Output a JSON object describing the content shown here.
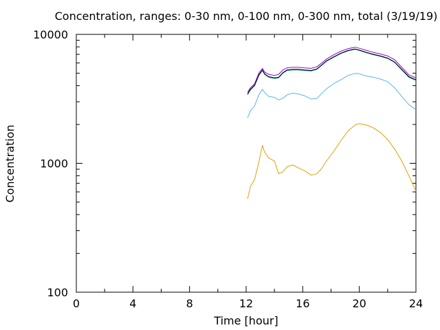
{
  "chart_data": {
    "type": "line",
    "title": "Concentration, ranges: 0-30 nm, 0-100 nm, 0-300 nm, total (3/19/19)",
    "xlabel": "Time [hour]",
    "ylabel": "Concentration",
    "xlim": [
      0,
      24
    ],
    "ylim": [
      100,
      10000
    ],
    "yscale": "log",
    "x_ticks": [
      "0",
      "4",
      "8",
      "12",
      "16",
      "20",
      "24"
    ],
    "y_ticks": [
      "100",
      "1000",
      "10000"
    ],
    "legend": "none",
    "grid": false,
    "series": [
      {
        "color": "#e0a000",
        "x": [
          12.1,
          12.3,
          12.6,
          12.9,
          13.15,
          13.3,
          13.6,
          14.0,
          14.3,
          14.6,
          14.9,
          15.3,
          15.7,
          16.1,
          16.6,
          17.0,
          17.3,
          17.7,
          18.2,
          18.7,
          19.2,
          19.7,
          20.0,
          20.5,
          21.0,
          21.5,
          22.0,
          22.5,
          23.0,
          23.5,
          24.0
        ],
        "values": [
          530,
          660,
          750,
          1020,
          1380,
          1220,
          1100,
          1040,
          830,
          860,
          940,
          970,
          920,
          880,
          810,
          830,
          900,
          1050,
          1240,
          1500,
          1780,
          1980,
          2030,
          1980,
          1880,
          1730,
          1530,
          1290,
          1040,
          800,
          610
        ]
      },
      {
        "color": "#56b4e9",
        "x": [
          12.1,
          12.3,
          12.6,
          12.9,
          13.15,
          13.3,
          13.6,
          14.0,
          14.3,
          14.6,
          14.9,
          15.3,
          15.7,
          16.1,
          16.6,
          17.0,
          17.3,
          17.7,
          18.2,
          18.7,
          19.2,
          19.7,
          20.0,
          20.5,
          21.0,
          21.5,
          22.0,
          22.5,
          23.0,
          23.5,
          24.0
        ],
        "values": [
          2250,
          2550,
          2800,
          3400,
          3750,
          3550,
          3300,
          3250,
          3100,
          3200,
          3400,
          3500,
          3450,
          3350,
          3150,
          3180,
          3450,
          3800,
          4150,
          4450,
          4800,
          4980,
          4950,
          4750,
          4650,
          4500,
          4300,
          3850,
          3300,
          2850,
          2600
        ]
      },
      {
        "color": "#009e73",
        "x": [
          12.1,
          12.3,
          12.6,
          12.9,
          13.15,
          13.3,
          13.6,
          14.0,
          14.3,
          14.6,
          14.9,
          15.3,
          15.7,
          16.1,
          16.6,
          17.0,
          17.3,
          17.7,
          18.2,
          18.7,
          19.2,
          19.7,
          20.0,
          20.5,
          21.0,
          21.5,
          22.0,
          22.5,
          23.0,
          23.5,
          24.0
        ],
        "values": [
          3400,
          3700,
          4000,
          4800,
          5250,
          4900,
          4650,
          4550,
          4600,
          5000,
          5250,
          5300,
          5300,
          5250,
          5200,
          5350,
          5700,
          6200,
          6650,
          7100,
          7450,
          7650,
          7500,
          7200,
          6950,
          6750,
          6500,
          6050,
          5300,
          4650,
          4400
        ]
      },
      {
        "color": "#000000",
        "x": [
          12.1,
          12.3,
          12.6,
          12.9,
          13.15,
          13.3,
          13.6,
          14.0,
          14.3,
          14.6,
          14.9,
          15.3,
          15.7,
          16.1,
          16.6,
          17.0,
          17.3,
          17.7,
          18.2,
          18.7,
          19.2,
          19.7,
          20.0,
          20.5,
          21.0,
          21.5,
          22.0,
          22.5,
          23.0,
          23.5,
          24.0
        ],
        "values": [
          3450,
          3750,
          4050,
          4850,
          5300,
          4950,
          4700,
          4600,
          4650,
          5050,
          5300,
          5350,
          5350,
          5300,
          5250,
          5400,
          5750,
          6250,
          6700,
          7150,
          7500,
          7700,
          7550,
          7250,
          7000,
          6800,
          6550,
          6100,
          5350,
          4700,
          4450
        ]
      },
      {
        "color": "#9400d3",
        "x": [
          12.1,
          12.3,
          12.6,
          12.9,
          13.15,
          13.3,
          13.6,
          14.0,
          14.3,
          14.6,
          14.9,
          15.3,
          15.7,
          16.1,
          16.6,
          17.0,
          17.3,
          17.7,
          18.2,
          18.7,
          19.2,
          19.7,
          20.0,
          20.5,
          21.0,
          21.5,
          22.0,
          22.5,
          23.0,
          23.5,
          24.0
        ],
        "values": [
          3550,
          3850,
          4150,
          5000,
          5450,
          5100,
          4900,
          4800,
          4900,
          5300,
          5500,
          5550,
          5550,
          5500,
          5450,
          5600,
          5950,
          6450,
          6950,
          7400,
          7750,
          7950,
          7800,
          7500,
          7250,
          7050,
          6800,
          6350,
          5550,
          4850,
          4600
        ]
      }
    ]
  }
}
